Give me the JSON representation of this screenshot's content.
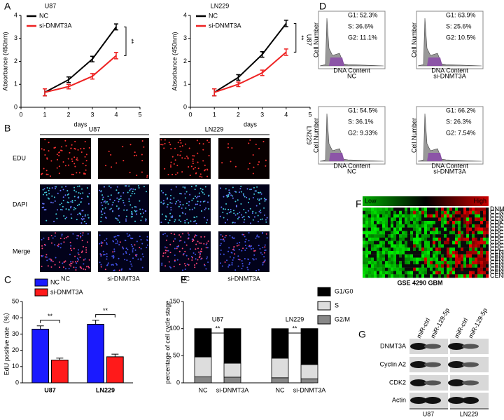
{
  "panel_labels": [
    "A",
    "B",
    "C",
    "D",
    "E",
    "F",
    "G"
  ],
  "chart_data": [
    {
      "type": "line",
      "title": "U87",
      "x_label": "days",
      "y_label": "Absorbance (450nm)",
      "x": [
        1,
        2,
        3,
        4
      ],
      "xlim": [
        0,
        5
      ],
      "xticks": [
        0,
        1,
        2,
        3,
        4,
        5
      ],
      "ylim": [
        0,
        4
      ],
      "yticks": [
        0,
        1,
        2,
        3,
        4
      ],
      "series": [
        {
          "name": "NC",
          "color": "#000000",
          "values": [
            0.65,
            1.2,
            2.1,
            3.5
          ],
          "errors": [
            0.15,
            0.12,
            0.12,
            0.13
          ]
        },
        {
          "name": "si-DNMT3A",
          "color": "#ee2222",
          "values": [
            0.65,
            0.9,
            1.35,
            2.25
          ],
          "errors": [
            0.15,
            0.1,
            0.12,
            0.14
          ]
        }
      ],
      "annotation": "**"
    },
    {
      "type": "line",
      "title": "LN229",
      "x_label": "days",
      "y_label": "Absorbance (450nm)",
      "x": [
        1,
        2,
        3,
        4
      ],
      "xlim": [
        0,
        5
      ],
      "xticks": [
        0,
        1,
        2,
        3,
        4,
        5
      ],
      "ylim": [
        0,
        4
      ],
      "yticks": [
        0,
        1,
        2,
        3,
        4
      ],
      "series": [
        {
          "name": "NC",
          "color": "#000000",
          "values": [
            0.65,
            1.3,
            2.3,
            3.65
          ],
          "errors": [
            0.15,
            0.12,
            0.12,
            0.14
          ]
        },
        {
          "name": "si-DNMT3A",
          "color": "#ee2222",
          "values": [
            0.65,
            1.0,
            1.5,
            2.4
          ],
          "errors": [
            0.15,
            0.1,
            0.12,
            0.14
          ]
        }
      ],
      "annotation": "**"
    },
    {
      "type": "bar",
      "y_label": "EdU positive rate（%）",
      "categories": [
        "U87",
        "LN229"
      ],
      "ylim": [
        0,
        50
      ],
      "yticks": [
        0,
        10,
        20,
        30,
        40,
        50
      ],
      "series": [
        {
          "name": "NC",
          "color": "#1a1aff",
          "values": [
            33,
            36
          ],
          "errors": [
            2,
            2.5
          ]
        },
        {
          "name": "si-DNMT3A",
          "color": "#ff1a1a",
          "values": [
            14,
            16
          ],
          "errors": [
            1.2,
            1.6
          ]
        }
      ],
      "annotations": [
        "**",
        "**"
      ]
    },
    {
      "type": "stacked_bar",
      "y_label": "percentage of cell cycle stage",
      "groups": [
        "U87",
        "LN229"
      ],
      "categories": [
        "NC",
        "si-DNMT3A",
        "NC",
        "si-DNMT3A"
      ],
      "ylim": [
        0,
        150
      ],
      "yticks": [
        0,
        50,
        100,
        150
      ],
      "series": [
        {
          "name": "G1/G0",
          "color": "#000000",
          "values": [
            52.3,
            63.9,
            54.5,
            66.2
          ]
        },
        {
          "name": "S",
          "color": "#dddddd",
          "values": [
            36.6,
            25.6,
            36.1,
            26.3
          ]
        },
        {
          "name": "G2/M",
          "color": "#888888",
          "values": [
            11.1,
            10.5,
            9.33,
            7.54
          ]
        }
      ],
      "annotations": [
        "**",
        "**"
      ]
    }
  ],
  "panel_b": {
    "columns": [
      "U87",
      "LN229"
    ],
    "rows": [
      "EDU",
      "DAPI",
      "Merge"
    ],
    "conditions": [
      "NC",
      "si-DNMT3A",
      "NC",
      "si-DNMT3A"
    ]
  },
  "panel_d": {
    "rows": [
      "U87",
      "LN229"
    ],
    "conditions": [
      "NC",
      "si-DNMT3A",
      "NC",
      "si-DNMT3A"
    ],
    "y_axis": "Cell Number",
    "x_axis": "DNA Content",
    "plots": [
      [
        "G1: 52.3%",
        "S: 36.6%",
        "G2: 11.1%"
      ],
      [
        "G1: 63.9%",
        "S: 25.6%",
        "G2: 10.5%"
      ],
      [
        "G1: 54.5%",
        "S: 36.1%",
        "G2: 9.33%"
      ],
      [
        "G1: 66.2%",
        "S: 26.3%",
        "G2: 7.54%"
      ]
    ]
  },
  "panel_f": {
    "low": "Low",
    "high": "High",
    "caption": "GSE 4290  GBM",
    "genes": [
      "DNMT3A",
      "CCNA2",
      "CCNB1",
      "CCNB2",
      "CDK2",
      "CDC2",
      "CDC20",
      "CDC6",
      "CDC7",
      "CDCA2",
      "CDCA3",
      "CDCA5",
      "CDCA8",
      "CENPA",
      "CENPE",
      "CENPF",
      "CENPI",
      "CENPK",
      "CENPL",
      "CENPM",
      "CENPN"
    ]
  },
  "panel_g": {
    "lanes": [
      "miR-ctrl",
      "miR-129-5p",
      "miR-ctrl",
      "miR-129-5p"
    ],
    "proteins": [
      "DNMT3A",
      "Cyclin A2",
      "CDK2",
      "Actin"
    ],
    "cells": [
      "U87",
      "LN229"
    ]
  }
}
